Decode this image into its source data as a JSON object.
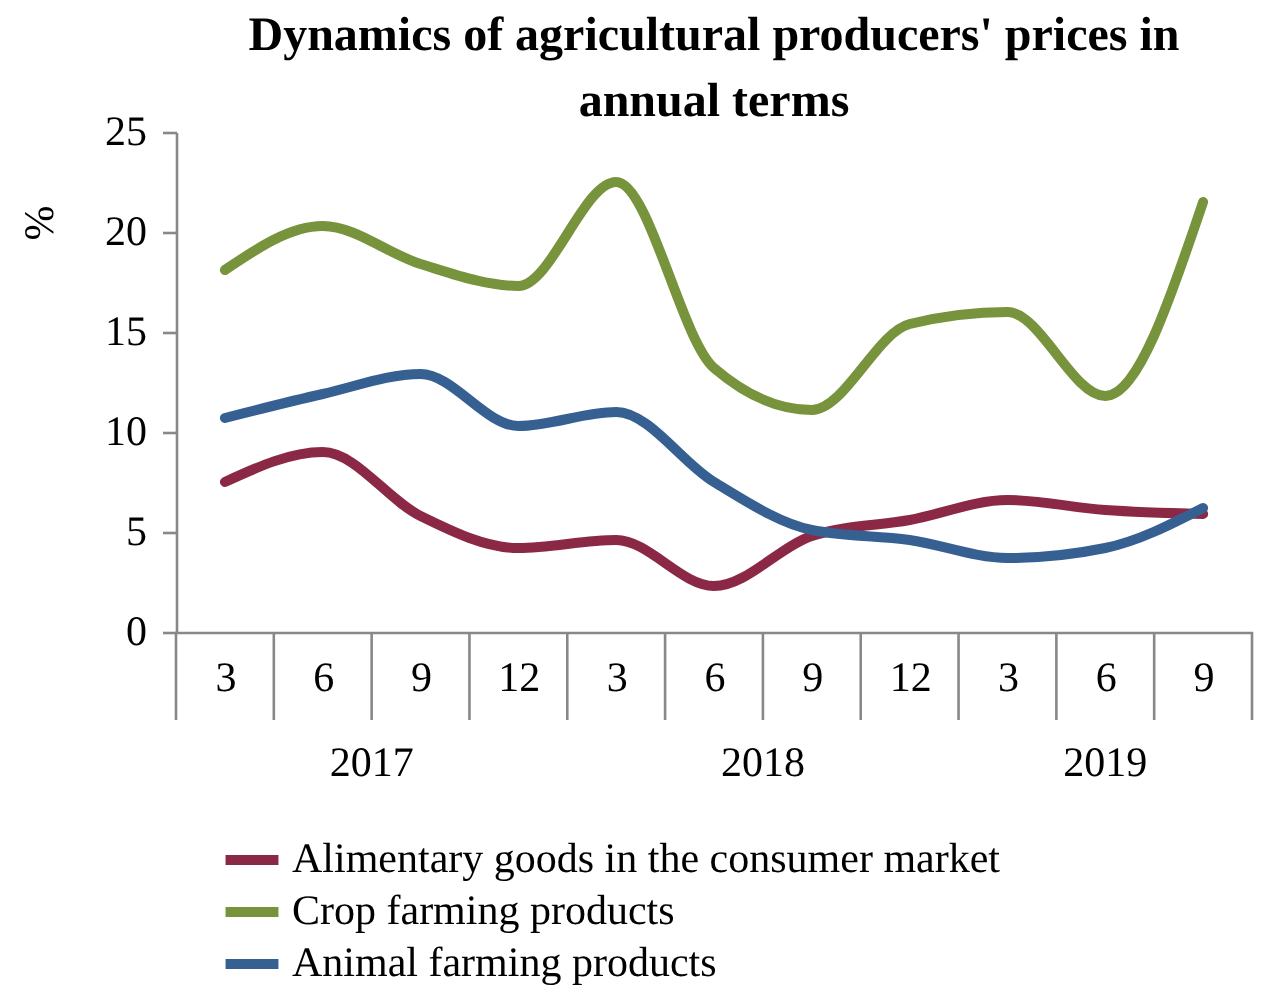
{
  "chart_data": {
    "type": "line",
    "title": "Dynamics of agricultural producers' prices in annual terms",
    "ylabel": "%",
    "categories": [
      "3",
      "6",
      "9",
      "12",
      "3",
      "6",
      "9",
      "12",
      "3",
      "6",
      "9"
    ],
    "annotations": [
      "2017",
      "2018",
      "2019"
    ],
    "series": [
      {
        "name": "Alimentary goods in the consumer market",
        "color": "#8b2846",
        "values": [
          7.5,
          9.0,
          5.8,
          4.2,
          4.6,
          2.3,
          4.8,
          5.6,
          6.6,
          6.1,
          5.9
        ]
      },
      {
        "name": "Crop farming products",
        "color": "#77933c",
        "values": [
          18.1,
          20.3,
          18.4,
          17.3,
          22.5,
          13.2,
          11.1,
          15.4,
          16.0,
          11.8,
          21.5
        ]
      },
      {
        "name": "Animal farming products",
        "color": "#376092",
        "values": [
          10.7,
          11.9,
          12.9,
          10.3,
          11.0,
          7.5,
          5.1,
          4.6,
          3.7,
          4.2,
          6.2
        ]
      }
    ],
    "ylim": [
      0,
      25
    ],
    "yticks": [
      0,
      5,
      10,
      15,
      20,
      25
    ],
    "grid": false,
    "legend": "bottom",
    "marker": "none",
    "line_style": "solid"
  }
}
